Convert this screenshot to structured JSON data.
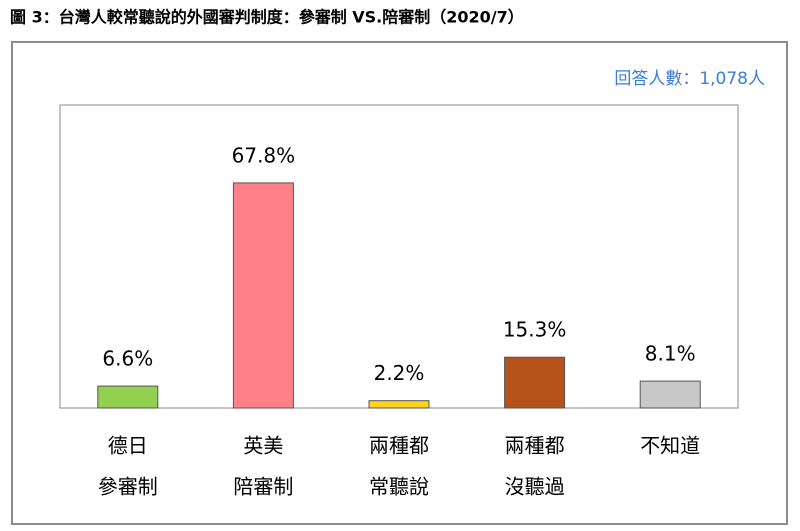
{
  "chart_data": {
    "type": "bar",
    "title": "圖 3：台灣人較常聽說的外國審判制度：參審制 VS.陪審制（2020/7）",
    "annotation": "回答人數：1,078人",
    "categories": [
      [
        "德日",
        "參審制"
      ],
      [
        "英美",
        "陪審制"
      ],
      [
        "兩種都",
        "常聽說"
      ],
      [
        "兩種都",
        "沒聽過"
      ],
      [
        "不知道"
      ]
    ],
    "values": [
      6.6,
      67.8,
      2.2,
      15.3,
      8.1
    ],
    "value_labels": [
      "6.6%",
      "67.8%",
      "2.2%",
      "15.3%",
      "8.1%"
    ],
    "colors": [
      "#92d050",
      "#ff8088",
      "#ffd21f",
      "#b5531b",
      "#c8c8c8"
    ]
  }
}
